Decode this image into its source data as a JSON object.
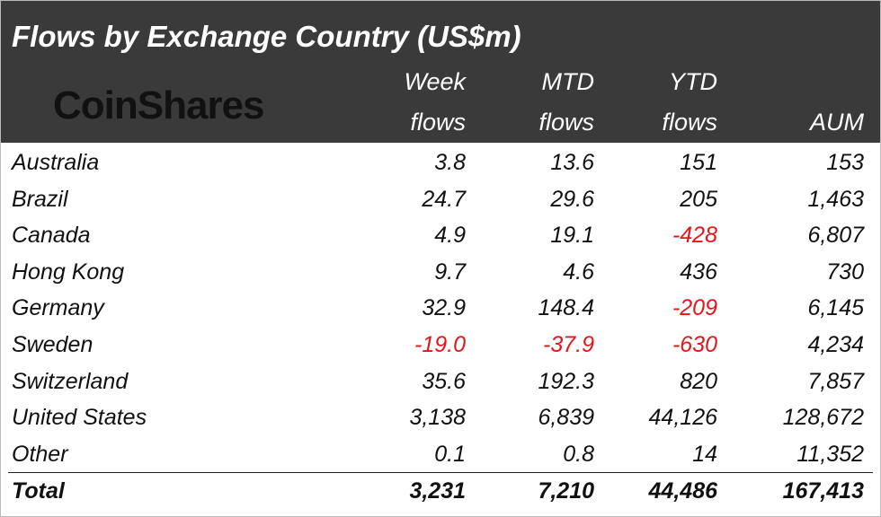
{
  "header": {
    "title": "Flows by Exchange Country (US$m)",
    "logo": "CoinShares",
    "columns": [
      [
        "Week",
        "flows"
      ],
      [
        "MTD",
        "flows"
      ],
      [
        "YTD",
        "flows"
      ],
      [
        "AUM"
      ]
    ]
  },
  "table": {
    "rows": [
      [
        "Australia",
        "3.8",
        "13.6",
        "151",
        "153"
      ],
      [
        "Brazil",
        "24.7",
        "29.6",
        "205",
        "1,463"
      ],
      [
        "Canada",
        "4.9",
        "19.1",
        "-428",
        "6,807"
      ],
      [
        "Hong Kong",
        "9.7",
        "4.6",
        "436",
        "730"
      ],
      [
        "Germany",
        "32.9",
        "148.4",
        "-209",
        "6,145"
      ],
      [
        "Sweden",
        "-19.0",
        "-37.9",
        "-630",
        "4,234"
      ],
      [
        "Switzerland",
        "35.6",
        "192.3",
        "820",
        "7,857"
      ],
      [
        "United States",
        "3,138",
        "6,839",
        "44,126",
        "128,672"
      ],
      [
        "Other",
        "0.1",
        "0.8",
        "14",
        "11,352"
      ]
    ],
    "total": [
      "Total",
      "3,231",
      "7,210",
      "44,486",
      "167,413"
    ]
  },
  "negative_color": "#e8141b"
}
